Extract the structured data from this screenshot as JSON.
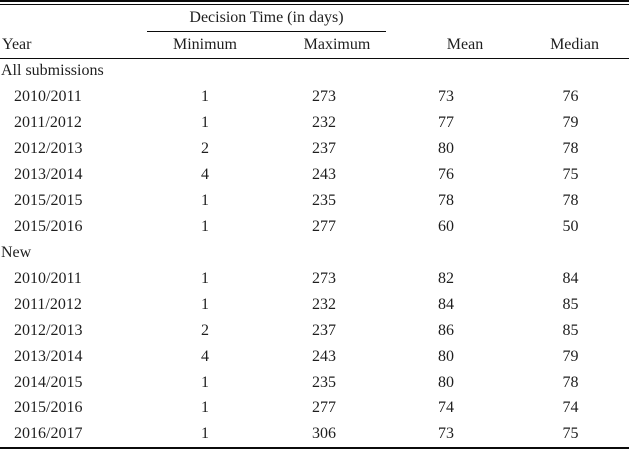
{
  "page": {
    "background": "#ffffff",
    "text_color": "#1e1e1e",
    "rule_color": "#0b0b0b"
  },
  "table": {
    "spanner_label": "Decision Time (in days)",
    "columns": [
      "Year",
      "Minimum",
      "Maximum",
      "Mean",
      "Median"
    ],
    "sections": [
      {
        "label": "All submissions",
        "rows": [
          {
            "year": "2010/2011",
            "minimum": "1",
            "maximum": "273",
            "mean": "73",
            "median": "76"
          },
          {
            "year": "2011/2012",
            "minimum": "1",
            "maximum": "232",
            "mean": "77",
            "median": "79"
          },
          {
            "year": "2012/2013",
            "minimum": "2",
            "maximum": "237",
            "mean": "80",
            "median": "78"
          },
          {
            "year": "2013/2014",
            "minimum": "4",
            "maximum": "243",
            "mean": "76",
            "median": "75"
          },
          {
            "year": "2015/2015",
            "minimum": "1",
            "maximum": "235",
            "mean": "78",
            "median": "78"
          },
          {
            "year": "2015/2016",
            "minimum": "1",
            "maximum": "277",
            "mean": "60",
            "median": "50"
          }
        ]
      },
      {
        "label": "New",
        "rows": [
          {
            "year": "2010/2011",
            "minimum": "1",
            "maximum": "273",
            "mean": "82",
            "median": "84"
          },
          {
            "year": "2011/2012",
            "minimum": "1",
            "maximum": "232",
            "mean": "84",
            "median": "85"
          },
          {
            "year": "2012/2013",
            "minimum": "2",
            "maximum": "237",
            "mean": "86",
            "median": "85"
          },
          {
            "year": "2013/2014",
            "minimum": "4",
            "maximum": "243",
            "mean": "80",
            "median": "79"
          },
          {
            "year": "2014/2015",
            "minimum": "1",
            "maximum": "235",
            "mean": "80",
            "median": "78"
          },
          {
            "year": "2015/2016",
            "minimum": "1",
            "maximum": "277",
            "mean": "74",
            "median": "74"
          },
          {
            "year": "2016/2017",
            "minimum": "1",
            "maximum": "306",
            "mean": "73",
            "median": "75"
          }
        ]
      }
    ]
  }
}
